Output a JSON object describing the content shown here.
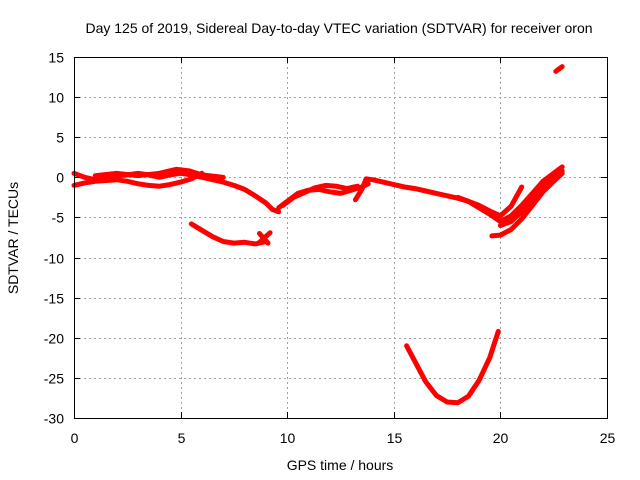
{
  "chart_data": {
    "type": "scatter",
    "title": "Day 125 of 2019, Sidereal Day-to-day VTEC variation (SDTVAR) for receiver oron",
    "xlabel": "GPS time / hours",
    "ylabel": "SDTVAR / TECUs",
    "xlim": [
      0,
      25
    ],
    "ylim": [
      -30,
      15
    ],
    "xticks": [
      0,
      5,
      10,
      15,
      20,
      25
    ],
    "yticks": [
      -30,
      -25,
      -20,
      -15,
      -10,
      -5,
      0,
      5,
      10,
      15
    ],
    "grid": true,
    "color": "#ff0000",
    "series": [
      {
        "name": "track-a",
        "x": [
          0.0,
          0.5,
          1.0,
          1.5,
          2.0,
          2.5,
          3.0,
          3.5,
          4.0,
          4.5,
          5.0,
          5.5,
          6.0,
          6.5,
          7.0,
          7.5,
          8.0,
          8.5,
          9.0,
          9.3,
          9.6
        ],
        "y": [
          0.5,
          0.0,
          -0.3,
          0.0,
          0.2,
          0.3,
          0.5,
          0.3,
          0.0,
          0.3,
          0.5,
          0.3,
          0.0,
          -0.3,
          -0.6,
          -1.0,
          -1.5,
          -2.3,
          -3.2,
          -4.0,
          -4.3
        ]
      },
      {
        "name": "track-b",
        "x": [
          0.0,
          0.5,
          1.0,
          1.5,
          2.0,
          2.5,
          3.0,
          3.5,
          4.0,
          4.5,
          5.0,
          5.5,
          6.0
        ],
        "y": [
          -1.0,
          -0.7,
          -0.5,
          -0.4,
          -0.3,
          -0.5,
          -0.8,
          -1.0,
          -1.1,
          -0.9,
          -0.6,
          -0.2,
          0.5
        ]
      },
      {
        "name": "track-c",
        "x": [
          1.0,
          2.0,
          3.0,
          4.0,
          4.8,
          5.4,
          6.0,
          7.0
        ],
        "y": [
          0.2,
          0.5,
          0.2,
          0.5,
          1.0,
          0.8,
          0.3,
          0.0
        ]
      },
      {
        "name": "track-d",
        "x": [
          5.5,
          6.0,
          6.5,
          7.0,
          7.5,
          8.0,
          8.5,
          9.0
        ],
        "y": [
          -5.8,
          -6.6,
          -7.4,
          -8.0,
          -8.2,
          -8.1,
          -8.3,
          -8.0
        ]
      },
      {
        "name": "track-e",
        "x": [
          8.7,
          9.1
        ],
        "y": [
          -7.0,
          -8.2
        ]
      },
      {
        "name": "track-f",
        "x": [
          8.7,
          9.2
        ],
        "y": [
          -8.1,
          -6.9
        ]
      },
      {
        "name": "track-g",
        "x": [
          9.6,
          10.0,
          10.5,
          11.0,
          11.5,
          12.0,
          12.5,
          13.0,
          13.5,
          13.8
        ],
        "y": [
          -3.8,
          -3.0,
          -2.0,
          -1.6,
          -1.5,
          -1.8,
          -2.0,
          -1.6,
          -1.2,
          -0.8
        ]
      },
      {
        "name": "track-h",
        "x": [
          9.8,
          10.3,
          10.8,
          11.3,
          11.8,
          12.3,
          12.8,
          13.3
        ],
        "y": [
          -3.5,
          -2.5,
          -1.9,
          -1.3,
          -1.0,
          -1.1,
          -1.4,
          -1.1
        ]
      },
      {
        "name": "track-i",
        "x": [
          13.2,
          13.5,
          13.7,
          14.0,
          14.5,
          15.0,
          15.5,
          16.0,
          16.5,
          17.0,
          17.5,
          18.0,
          18.5,
          19.0,
          19.5,
          20.0,
          20.5,
          21.0
        ],
        "y": [
          -2.8,
          -1.5,
          -0.2,
          -0.3,
          -0.6,
          -0.9,
          -1.2,
          -1.4,
          -1.7,
          -2.0,
          -2.3,
          -2.6,
          -3.0,
          -3.5,
          -4.2,
          -4.8,
          -3.6,
          -1.2
        ]
      },
      {
        "name": "track-j",
        "x": [
          18.0,
          18.5,
          19.0,
          19.5,
          20.0,
          20.5,
          21.0,
          21.5,
          22.0,
          22.5,
          22.9
        ],
        "y": [
          -2.5,
          -3.0,
          -3.8,
          -4.6,
          -5.5,
          -4.8,
          -3.5,
          -2.0,
          -0.5,
          0.5,
          1.3
        ]
      },
      {
        "name": "track-k",
        "x": [
          19.6,
          20.0,
          20.5,
          21.0,
          21.5,
          22.0,
          22.5,
          22.9
        ],
        "y": [
          -7.3,
          -7.2,
          -6.5,
          -5.2,
          -3.5,
          -1.8,
          -0.5,
          0.5
        ]
      },
      {
        "name": "track-l",
        "x": [
          20.0,
          20.5,
          21.0,
          21.5,
          22.0,
          22.5,
          22.9
        ],
        "y": [
          -6.0,
          -5.5,
          -4.3,
          -2.8,
          -1.2,
          0.0,
          0.8
        ]
      },
      {
        "name": "track-m",
        "x": [
          15.6,
          16.0,
          16.5,
          17.0,
          17.5,
          18.0,
          18.5,
          19.0,
          19.5,
          19.9
        ],
        "y": [
          -21.0,
          -23.0,
          -25.5,
          -27.2,
          -28.0,
          -28.1,
          -27.3,
          -25.3,
          -22.5,
          -19.2
        ]
      },
      {
        "name": "track-n",
        "x": [
          22.6,
          22.9
        ],
        "y": [
          13.2,
          13.8
        ]
      }
    ]
  }
}
